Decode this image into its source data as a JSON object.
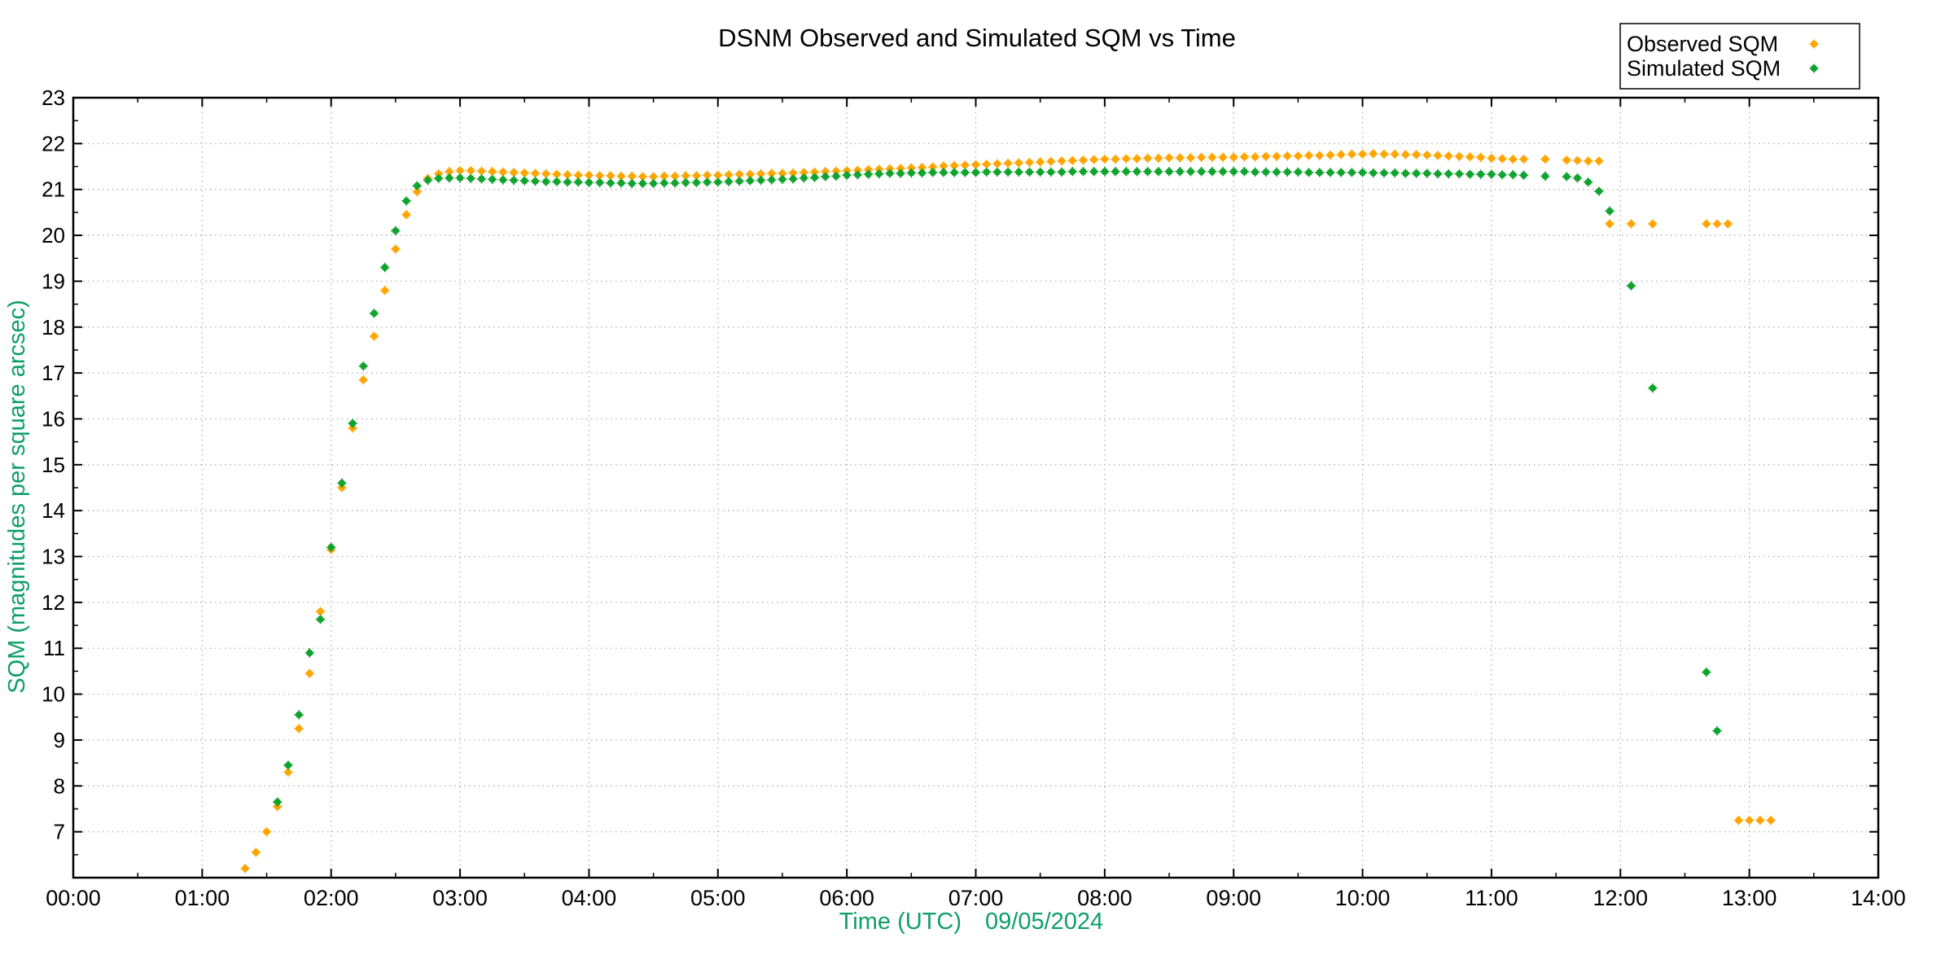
{
  "page": {
    "background": "#ffffff"
  },
  "chart_data": {
    "type": "scatter",
    "title": "DSNM Observed and Simulated SQM vs Time",
    "xlabel": "Time (UTC)",
    "xlabel_date": "09/05/2024",
    "ylabel": "SQM (magnitudes per square arcsec)",
    "axis_label_color": "#0f9e68",
    "grid_color": "#b0b0b0",
    "frame_color": "#000000",
    "xlim_hours": [
      0,
      14
    ],
    "ylim": [
      6,
      23
    ],
    "x_major_tick_labels": [
      "00:00",
      "01:00",
      "02:00",
      "03:00",
      "04:00",
      "05:00",
      "06:00",
      "07:00",
      "08:00",
      "09:00",
      "10:00",
      "11:00",
      "12:00",
      "13:00",
      "14:00"
    ],
    "x_minor_interval_minutes": 30,
    "y_major_ticks": [
      7,
      8,
      9,
      10,
      11,
      12,
      13,
      14,
      15,
      16,
      17,
      18,
      19,
      20,
      21,
      22,
      23
    ],
    "y_minor_interval": 0.5,
    "grid": {
      "show": true,
      "style": "dotted",
      "legend_position": "top-right"
    },
    "series": [
      {
        "name": "Observed SQM",
        "color": "#ffa500",
        "points": [
          [
            "01:20",
            6.2
          ],
          [
            "01:25",
            6.55
          ],
          [
            "01:30",
            7.0
          ],
          [
            "01:35",
            7.55
          ],
          [
            "01:40",
            8.3
          ],
          [
            "01:45",
            9.25
          ],
          [
            "01:50",
            10.45
          ],
          [
            "01:55",
            11.8
          ],
          [
            "02:00",
            13.15
          ],
          [
            "02:05",
            14.5
          ],
          [
            "02:10",
            15.8
          ],
          [
            "02:15",
            16.85
          ],
          [
            "02:20",
            17.8
          ],
          [
            "02:25",
            18.8
          ],
          [
            "02:30",
            19.7
          ],
          [
            "02:35",
            20.45
          ],
          [
            "02:40",
            20.95
          ],
          [
            "02:45",
            21.24
          ],
          [
            "02:50",
            21.34
          ],
          [
            "02:55",
            21.39
          ],
          [
            "03:00",
            21.41
          ],
          [
            "03:05",
            21.41
          ],
          [
            "03:10",
            21.4
          ],
          [
            "03:15",
            21.39
          ],
          [
            "03:20",
            21.38
          ],
          [
            "03:25",
            21.37
          ],
          [
            "03:30",
            21.36
          ],
          [
            "03:35",
            21.35
          ],
          [
            "03:40",
            21.34
          ],
          [
            "03:45",
            21.33
          ],
          [
            "03:50",
            21.32
          ],
          [
            "03:55",
            21.31
          ],
          [
            "04:00",
            21.31
          ],
          [
            "04:05",
            21.3
          ],
          [
            "04:10",
            21.3
          ],
          [
            "04:15",
            21.29
          ],
          [
            "04:20",
            21.29
          ],
          [
            "04:25",
            21.28
          ],
          [
            "04:30",
            21.28
          ],
          [
            "04:35",
            21.29
          ],
          [
            "04:40",
            21.29
          ],
          [
            "04:45",
            21.3
          ],
          [
            "04:50",
            21.3
          ],
          [
            "04:55",
            21.31
          ],
          [
            "05:00",
            21.31
          ],
          [
            "05:05",
            21.32
          ],
          [
            "05:10",
            21.33
          ],
          [
            "05:15",
            21.33
          ],
          [
            "05:20",
            21.34
          ],
          [
            "05:25",
            21.35
          ],
          [
            "05:30",
            21.35
          ],
          [
            "05:35",
            21.36
          ],
          [
            "05:40",
            21.37
          ],
          [
            "05:45",
            21.38
          ],
          [
            "05:50",
            21.39
          ],
          [
            "05:55",
            21.4
          ],
          [
            "06:00",
            21.41
          ],
          [
            "06:05",
            21.42
          ],
          [
            "06:10",
            21.43
          ],
          [
            "06:15",
            21.44
          ],
          [
            "06:20",
            21.45
          ],
          [
            "06:25",
            21.46
          ],
          [
            "06:30",
            21.47
          ],
          [
            "06:35",
            21.48
          ],
          [
            "06:40",
            21.49
          ],
          [
            "06:45",
            21.51
          ],
          [
            "06:50",
            21.52
          ],
          [
            "06:55",
            21.53
          ],
          [
            "07:00",
            21.54
          ],
          [
            "07:05",
            21.55
          ],
          [
            "07:10",
            21.56
          ],
          [
            "07:15",
            21.57
          ],
          [
            "07:20",
            21.58
          ],
          [
            "07:25",
            21.59
          ],
          [
            "07:30",
            21.6
          ],
          [
            "07:35",
            21.61
          ],
          [
            "07:40",
            21.62
          ],
          [
            "07:45",
            21.63
          ],
          [
            "07:50",
            21.64
          ],
          [
            "07:55",
            21.65
          ],
          [
            "08:00",
            21.66
          ],
          [
            "08:05",
            21.66
          ],
          [
            "08:10",
            21.67
          ],
          [
            "08:15",
            21.67
          ],
          [
            "08:20",
            21.68
          ],
          [
            "08:25",
            21.68
          ],
          [
            "08:30",
            21.69
          ],
          [
            "08:35",
            21.69
          ],
          [
            "08:40",
            21.69
          ],
          [
            "08:45",
            21.7
          ],
          [
            "08:50",
            21.7
          ],
          [
            "08:55",
            21.7
          ],
          [
            "09:00",
            21.7
          ],
          [
            "09:05",
            21.71
          ],
          [
            "09:10",
            21.71
          ],
          [
            "09:15",
            21.72
          ],
          [
            "09:20",
            21.72
          ],
          [
            "09:25",
            21.73
          ],
          [
            "09:30",
            21.73
          ],
          [
            "09:35",
            21.74
          ],
          [
            "09:40",
            21.74
          ],
          [
            "09:45",
            21.75
          ],
          [
            "09:50",
            21.76
          ],
          [
            "09:55",
            21.77
          ],
          [
            "10:00",
            21.77
          ],
          [
            "10:05",
            21.78
          ],
          [
            "10:10",
            21.77
          ],
          [
            "10:15",
            21.77
          ],
          [
            "10:20",
            21.76
          ],
          [
            "10:25",
            21.76
          ],
          [
            "10:30",
            21.75
          ],
          [
            "10:35",
            21.74
          ],
          [
            "10:40",
            21.73
          ],
          [
            "10:45",
            21.72
          ],
          [
            "10:50",
            21.71
          ],
          [
            "10:55",
            21.7
          ],
          [
            "11:00",
            21.68
          ],
          [
            "11:05",
            21.67
          ],
          [
            "11:10",
            21.66
          ],
          [
            "11:15",
            21.66
          ],
          [
            "11:25",
            21.66
          ],
          [
            "11:35",
            21.64
          ],
          [
            "11:40",
            21.63
          ],
          [
            "11:45",
            21.62
          ],
          [
            "11:50",
            21.62
          ],
          [
            "11:55",
            20.25
          ],
          [
            "12:05",
            20.25
          ],
          [
            "12:15",
            20.25
          ],
          [
            "12:40",
            20.25
          ],
          [
            "12:45",
            20.25
          ],
          [
            "12:50",
            20.25
          ],
          [
            "12:55",
            7.25
          ],
          [
            "13:00",
            7.25
          ],
          [
            "13:05",
            7.25
          ],
          [
            "13:10",
            7.25
          ]
        ]
      },
      {
        "name": "Simulated SQM",
        "color": "#10a32e",
        "points": [
          [
            "01:35",
            7.65
          ],
          [
            "01:40",
            8.45
          ],
          [
            "01:45",
            9.55
          ],
          [
            "01:50",
            10.9
          ],
          [
            "01:55",
            11.63
          ],
          [
            "02:00",
            13.2
          ],
          [
            "02:05",
            14.6
          ],
          [
            "02:10",
            15.9
          ],
          [
            "02:15",
            17.15
          ],
          [
            "02:20",
            18.3
          ],
          [
            "02:25",
            19.3
          ],
          [
            "02:30",
            20.1
          ],
          [
            "02:35",
            20.75
          ],
          [
            "02:40",
            21.08
          ],
          [
            "02:45",
            21.2
          ],
          [
            "02:50",
            21.24
          ],
          [
            "02:55",
            21.25
          ],
          [
            "03:00",
            21.25
          ],
          [
            "03:05",
            21.24
          ],
          [
            "03:10",
            21.23
          ],
          [
            "03:15",
            21.22
          ],
          [
            "03:20",
            21.21
          ],
          [
            "03:25",
            21.2
          ],
          [
            "03:30",
            21.19
          ],
          [
            "03:35",
            21.18
          ],
          [
            "03:40",
            21.17
          ],
          [
            "03:45",
            21.17
          ],
          [
            "03:50",
            21.16
          ],
          [
            "03:55",
            21.16
          ],
          [
            "04:00",
            21.15
          ],
          [
            "04:05",
            21.15
          ],
          [
            "04:10",
            21.14
          ],
          [
            "04:15",
            21.14
          ],
          [
            "04:20",
            21.13
          ],
          [
            "04:25",
            21.13
          ],
          [
            "04:30",
            21.13
          ],
          [
            "04:35",
            21.14
          ],
          [
            "04:40",
            21.14
          ],
          [
            "04:45",
            21.15
          ],
          [
            "04:50",
            21.15
          ],
          [
            "04:55",
            21.16
          ],
          [
            "05:00",
            21.16
          ],
          [
            "05:05",
            21.17
          ],
          [
            "05:10",
            21.18
          ],
          [
            "05:15",
            21.19
          ],
          [
            "05:20",
            21.2
          ],
          [
            "05:25",
            21.21
          ],
          [
            "05:30",
            21.22
          ],
          [
            "05:35",
            21.23
          ],
          [
            "05:40",
            21.25
          ],
          [
            "05:45",
            21.26
          ],
          [
            "05:50",
            21.28
          ],
          [
            "05:55",
            21.29
          ],
          [
            "06:00",
            21.31
          ],
          [
            "06:05",
            21.32
          ],
          [
            "06:10",
            21.33
          ],
          [
            "06:15",
            21.34
          ],
          [
            "06:20",
            21.35
          ],
          [
            "06:25",
            21.35
          ],
          [
            "06:30",
            21.36
          ],
          [
            "06:35",
            21.36
          ],
          [
            "06:40",
            21.37
          ],
          [
            "06:45",
            21.37
          ],
          [
            "06:50",
            21.37
          ],
          [
            "06:55",
            21.37
          ],
          [
            "07:00",
            21.37
          ],
          [
            "07:05",
            21.38
          ],
          [
            "07:10",
            21.38
          ],
          [
            "07:15",
            21.38
          ],
          [
            "07:20",
            21.38
          ],
          [
            "07:25",
            21.38
          ],
          [
            "07:30",
            21.38
          ],
          [
            "07:35",
            21.38
          ],
          [
            "07:40",
            21.38
          ],
          [
            "07:45",
            21.39
          ],
          [
            "07:50",
            21.39
          ],
          [
            "07:55",
            21.39
          ],
          [
            "08:00",
            21.39
          ],
          [
            "08:05",
            21.39
          ],
          [
            "08:10",
            21.39
          ],
          [
            "08:15",
            21.39
          ],
          [
            "08:20",
            21.39
          ],
          [
            "08:25",
            21.39
          ],
          [
            "08:30",
            21.39
          ],
          [
            "08:35",
            21.39
          ],
          [
            "08:40",
            21.39
          ],
          [
            "08:45",
            21.39
          ],
          [
            "08:50",
            21.39
          ],
          [
            "08:55",
            21.39
          ],
          [
            "09:00",
            21.39
          ],
          [
            "09:05",
            21.39
          ],
          [
            "09:10",
            21.38
          ],
          [
            "09:15",
            21.38
          ],
          [
            "09:20",
            21.38
          ],
          [
            "09:25",
            21.38
          ],
          [
            "09:30",
            21.38
          ],
          [
            "09:35",
            21.37
          ],
          [
            "09:40",
            21.37
          ],
          [
            "09:45",
            21.37
          ],
          [
            "09:50",
            21.37
          ],
          [
            "09:55",
            21.37
          ],
          [
            "10:00",
            21.37
          ],
          [
            "10:05",
            21.36
          ],
          [
            "10:10",
            21.36
          ],
          [
            "10:15",
            21.36
          ],
          [
            "10:20",
            21.35
          ],
          [
            "10:25",
            21.35
          ],
          [
            "10:30",
            21.35
          ],
          [
            "10:35",
            21.34
          ],
          [
            "10:40",
            21.34
          ],
          [
            "10:45",
            21.34
          ],
          [
            "10:50",
            21.33
          ],
          [
            "10:55",
            21.33
          ],
          [
            "11:00",
            21.33
          ],
          [
            "11:05",
            21.32
          ],
          [
            "11:10",
            21.32
          ],
          [
            "11:15",
            21.31
          ],
          [
            "11:25",
            21.29
          ],
          [
            "11:35",
            21.28
          ],
          [
            "11:40",
            21.25
          ],
          [
            "11:45",
            21.16
          ],
          [
            "11:50",
            20.96
          ],
          [
            "11:55",
            20.53
          ],
          [
            "12:05",
            18.9
          ],
          [
            "12:15",
            16.67
          ],
          [
            "12:40",
            10.48
          ],
          [
            "12:45",
            9.2
          ]
        ]
      }
    ]
  }
}
